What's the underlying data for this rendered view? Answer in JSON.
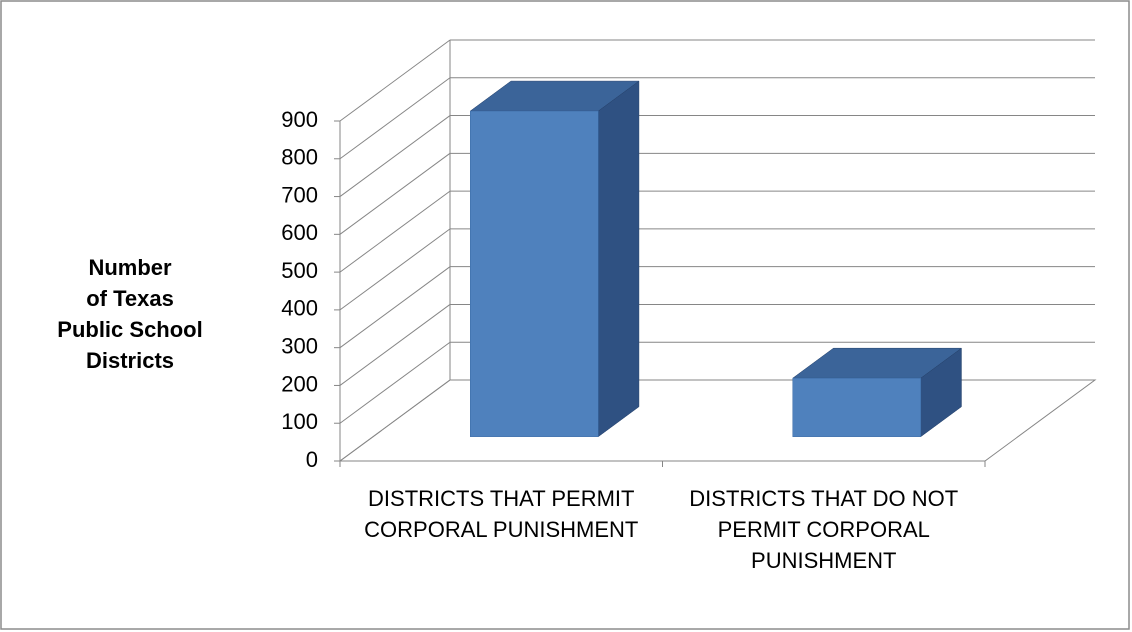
{
  "chart_data": {
    "type": "bar3d",
    "y_label_lines": [
      "Number",
      "of Texas",
      "Public School",
      "Districts"
    ],
    "categories": [
      "DISTRICTS THAT PERMIT CORPORAL PUNISHMENT",
      "DISTRICTS THAT DO NOT PERMIT CORPORAL PUNISHMENT"
    ],
    "values": [
      862,
      155
    ],
    "color": "#4f81bd",
    "ylim": [
      0,
      900
    ],
    "yticks": [
      0,
      100,
      200,
      300,
      400,
      500,
      600,
      700,
      800,
      900
    ],
    "grid": true
  }
}
